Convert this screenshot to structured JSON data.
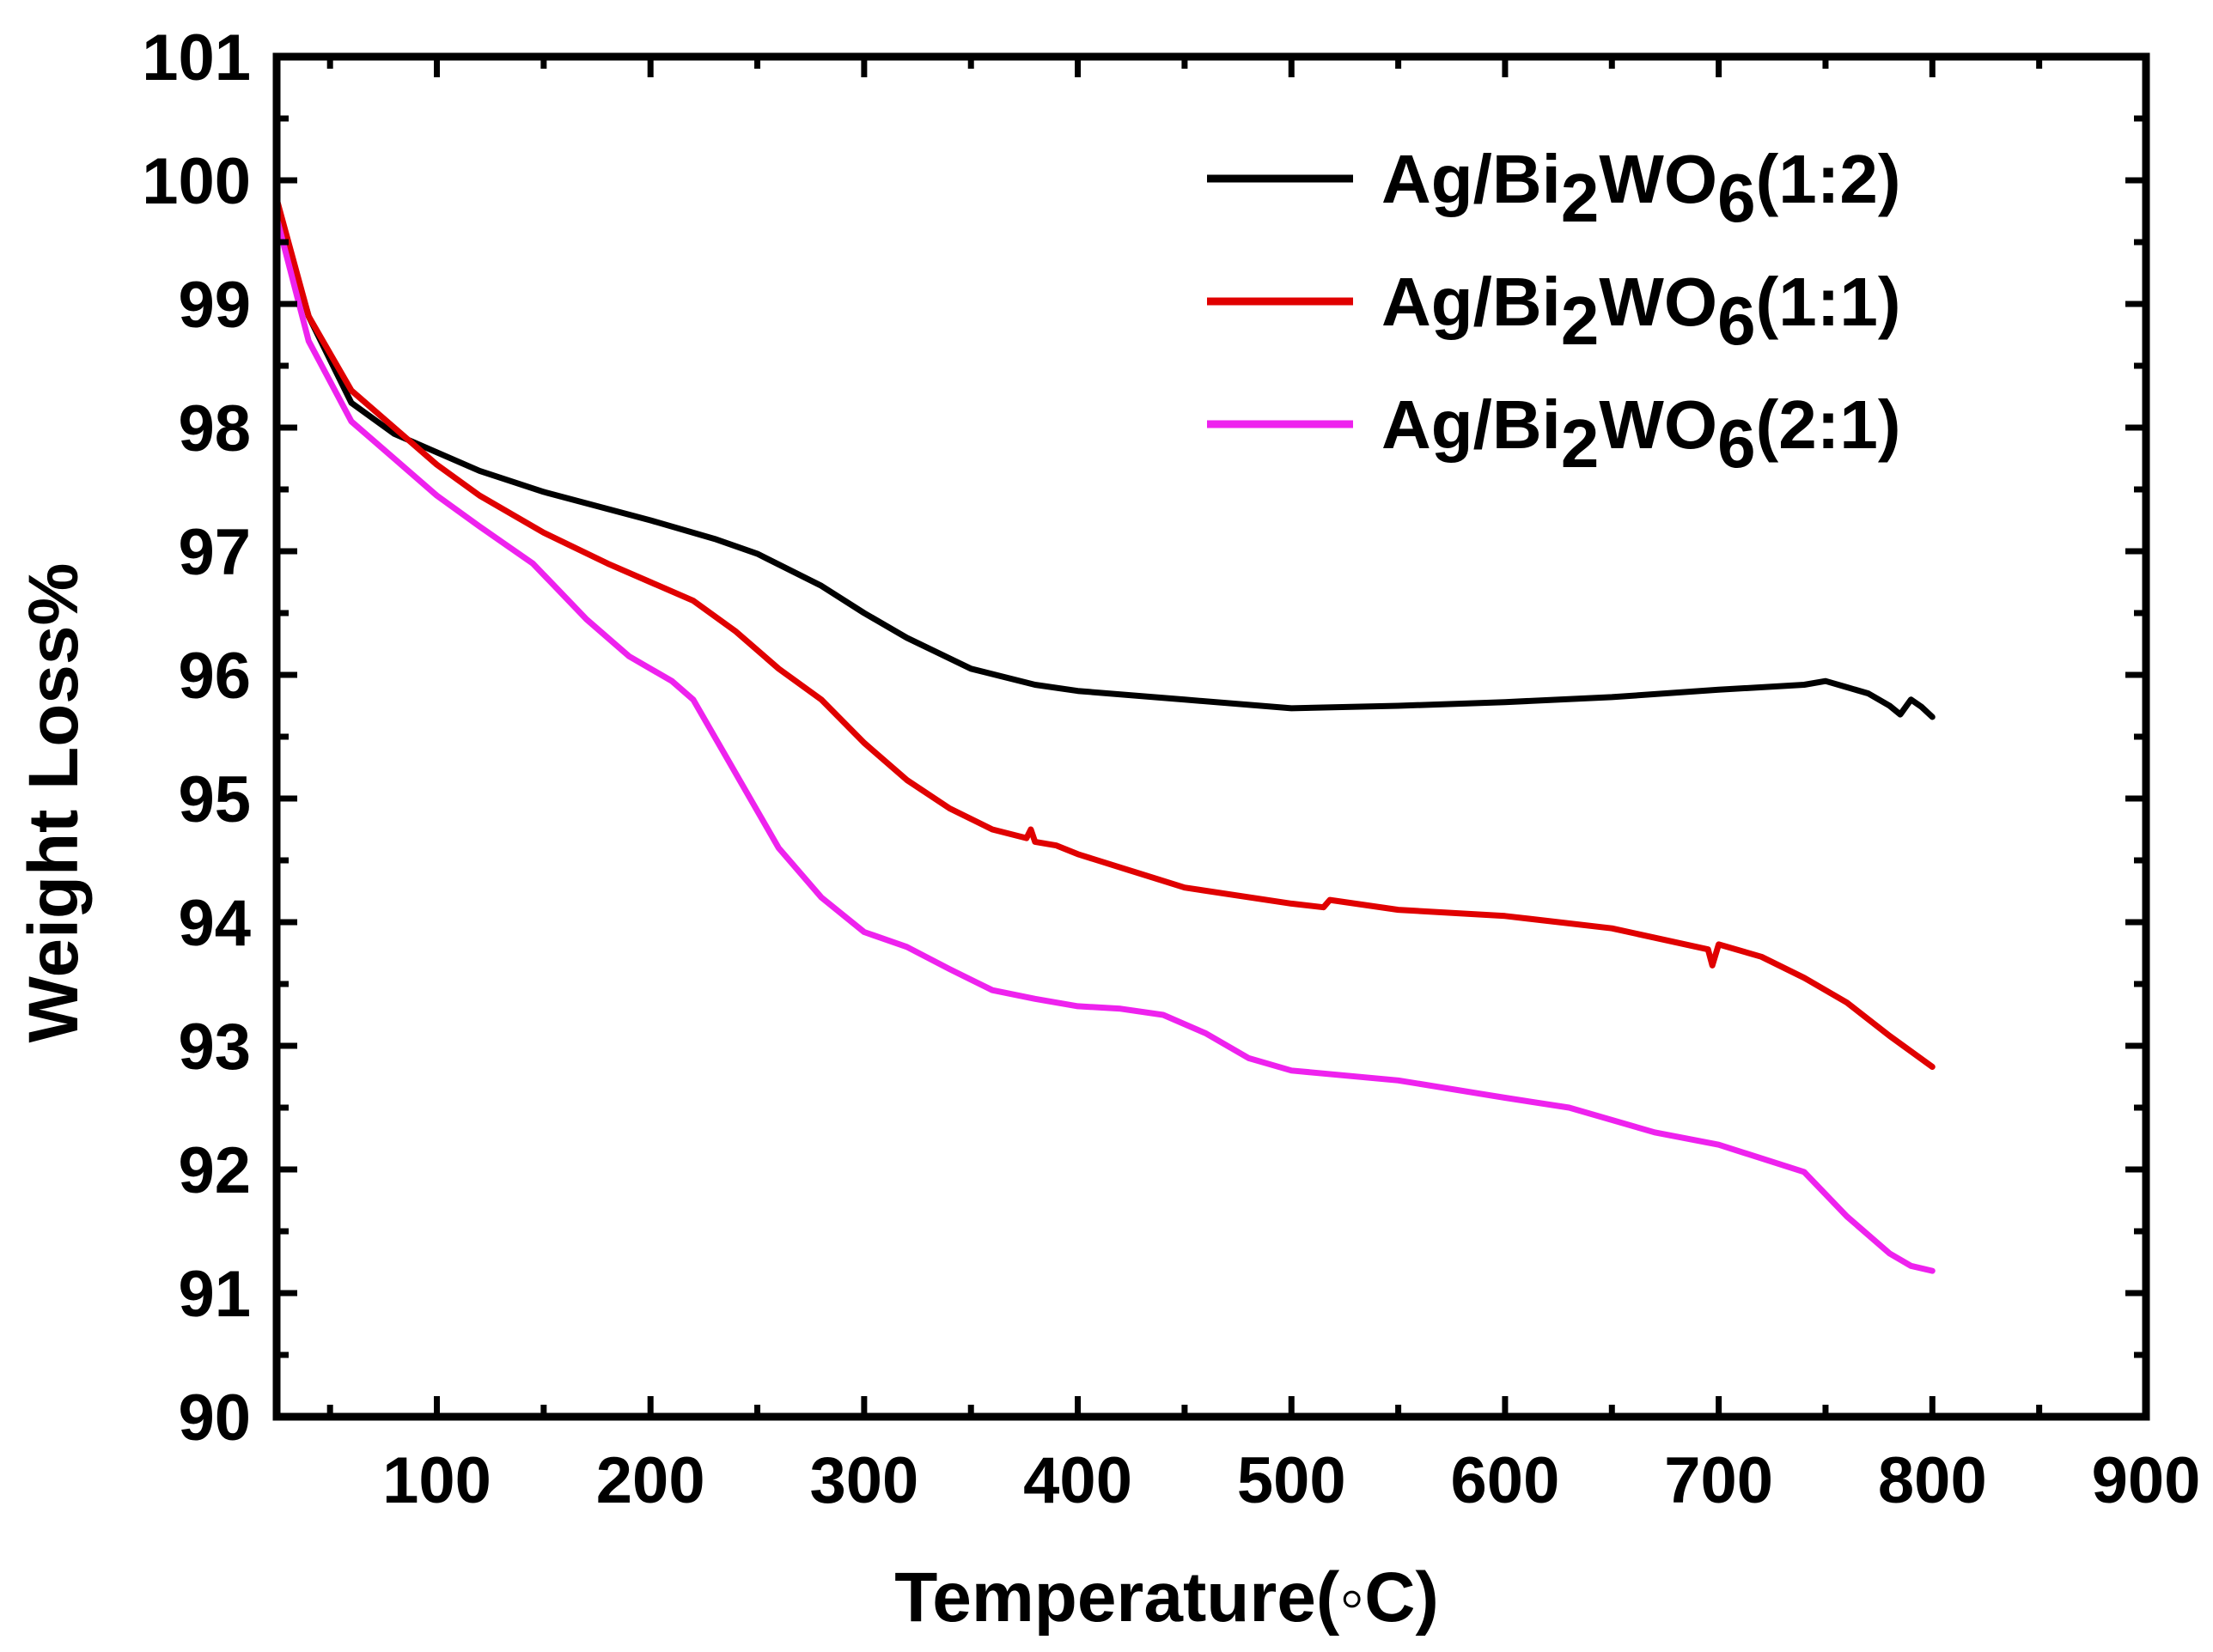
{
  "chart_data": {
    "type": "line",
    "title": "",
    "xlabel": "Temperature(◦C)",
    "ylabel": "Weight Loss%",
    "xlim": [
      25,
      900
    ],
    "ylim": [
      90,
      101
    ],
    "xticks": [
      100,
      200,
      300,
      400,
      500,
      600,
      700,
      800,
      900
    ],
    "yticks": [
      90,
      91,
      92,
      93,
      94,
      95,
      96,
      97,
      98,
      99,
      100,
      101
    ],
    "grid": false,
    "legend_position": "top-right",
    "series": [
      {
        "name": "Ag/Bi2WO6(1:2)",
        "legend": {
          "prefix": "Ag/Bi",
          "sub1": "2",
          "mid": "WO",
          "sub2": "6",
          "suffix": "(1:2)"
        },
        "color": "#000000",
        "x": [
          25,
          40,
          60,
          80,
          100,
          120,
          150,
          200,
          230,
          250,
          280,
          300,
          320,
          350,
          380,
          400,
          450,
          500,
          550,
          600,
          650,
          700,
          740,
          750,
          760,
          770,
          780,
          785,
          790,
          795,
          800
        ],
        "y": [
          99.8,
          98.9,
          98.2,
          97.95,
          97.8,
          97.65,
          97.48,
          97.25,
          97.1,
          96.98,
          96.72,
          96.5,
          96.3,
          96.05,
          95.92,
          95.87,
          95.8,
          95.73,
          95.75,
          95.78,
          95.82,
          95.88,
          95.92,
          95.95,
          95.9,
          95.85,
          95.75,
          95.68,
          95.8,
          95.74,
          95.66
        ]
      },
      {
        "name": "Ag/Bi2WO6(1:1)",
        "legend": {
          "prefix": "Ag/Bi",
          "sub1": "2",
          "mid": "WO",
          "sub2": "6",
          "suffix": "(1:1)"
        },
        "color": "#e00000",
        "x": [
          25,
          40,
          60,
          80,
          100,
          120,
          150,
          180,
          200,
          220,
          240,
          260,
          280,
          300,
          320,
          340,
          360,
          376,
          378,
          380,
          390,
          400,
          450,
          500,
          515,
          518,
          550,
          600,
          650,
          695,
          697,
          700,
          720,
          740,
          760,
          780,
          800
        ],
        "y": [
          99.85,
          98.9,
          98.3,
          98.0,
          97.7,
          97.45,
          97.15,
          96.9,
          96.75,
          96.6,
          96.35,
          96.05,
          95.8,
          95.45,
          95.15,
          94.92,
          94.75,
          94.68,
          94.75,
          94.65,
          94.62,
          94.55,
          94.28,
          94.15,
          94.12,
          94.18,
          94.1,
          94.05,
          93.95,
          93.78,
          93.65,
          93.82,
          93.72,
          93.55,
          93.35,
          93.08,
          92.83
        ]
      },
      {
        "name": "Ag/Bi2WO6(2:1)",
        "legend": {
          "prefix": "Ag/Bi",
          "sub1": "2",
          "mid": "WO",
          "sub2": "6",
          "suffix": "(2:1)"
        },
        "color": "#ee22ee",
        "x": [
          25,
          40,
          60,
          80,
          100,
          120,
          145,
          170,
          190,
          210,
          220,
          240,
          260,
          280,
          300,
          320,
          340,
          360,
          380,
          400,
          420,
          440,
          460,
          480,
          500,
          550,
          600,
          630,
          670,
          700,
          740,
          760,
          780,
          790,
          800
        ],
        "y": [
          99.7,
          98.7,
          98.05,
          97.75,
          97.45,
          97.2,
          96.9,
          96.45,
          96.15,
          95.95,
          95.8,
          95.2,
          94.6,
          94.2,
          93.92,
          93.8,
          93.62,
          93.45,
          93.38,
          93.32,
          93.3,
          93.25,
          93.1,
          92.9,
          92.8,
          92.72,
          92.58,
          92.5,
          92.3,
          92.2,
          91.98,
          91.62,
          91.32,
          91.22,
          91.18
        ]
      }
    ]
  }
}
